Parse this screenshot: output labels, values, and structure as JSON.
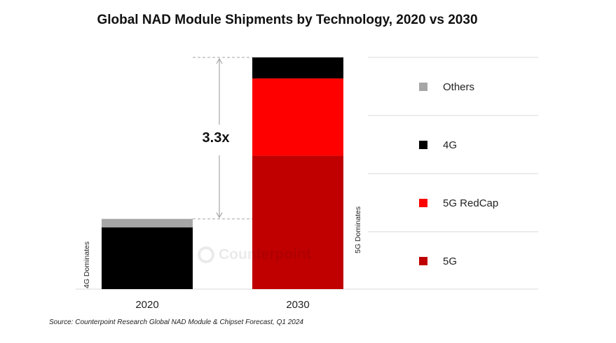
{
  "chart_data": {
    "type": "bar",
    "stacked": true,
    "title": "Global NAD Module Shipments by Technology, 2020 vs 2030",
    "categories": [
      "2020",
      "2030"
    ],
    "series": [
      {
        "name": "5G",
        "color": "#c00000",
        "values": [
          0,
          1.9
        ]
      },
      {
        "name": "5G RedCap",
        "color": "#ff0000",
        "values": [
          0,
          1.1
        ]
      },
      {
        "name": "4G",
        "color": "#000000",
        "values": [
          0.88,
          0.3
        ]
      },
      {
        "name": "Others",
        "color": "#a6a6a6",
        "values": [
          0.12,
          0
        ]
      }
    ],
    "ylim": [
      0,
      3.3
    ],
    "xlabel": "",
    "ylabel": "",
    "legend_order": [
      "Others",
      "4G",
      "5G RedCap",
      "5G"
    ],
    "legend_position": "right",
    "annotations": {
      "growth_label": "3.3x",
      "bar_notes": [
        "4G Dominates",
        "5G Dominates"
      ]
    },
    "source": "Source: Counterpoint Research Global NAD Module & Chipset Forecast, Q1 2024",
    "watermark": "Counterpoint"
  }
}
